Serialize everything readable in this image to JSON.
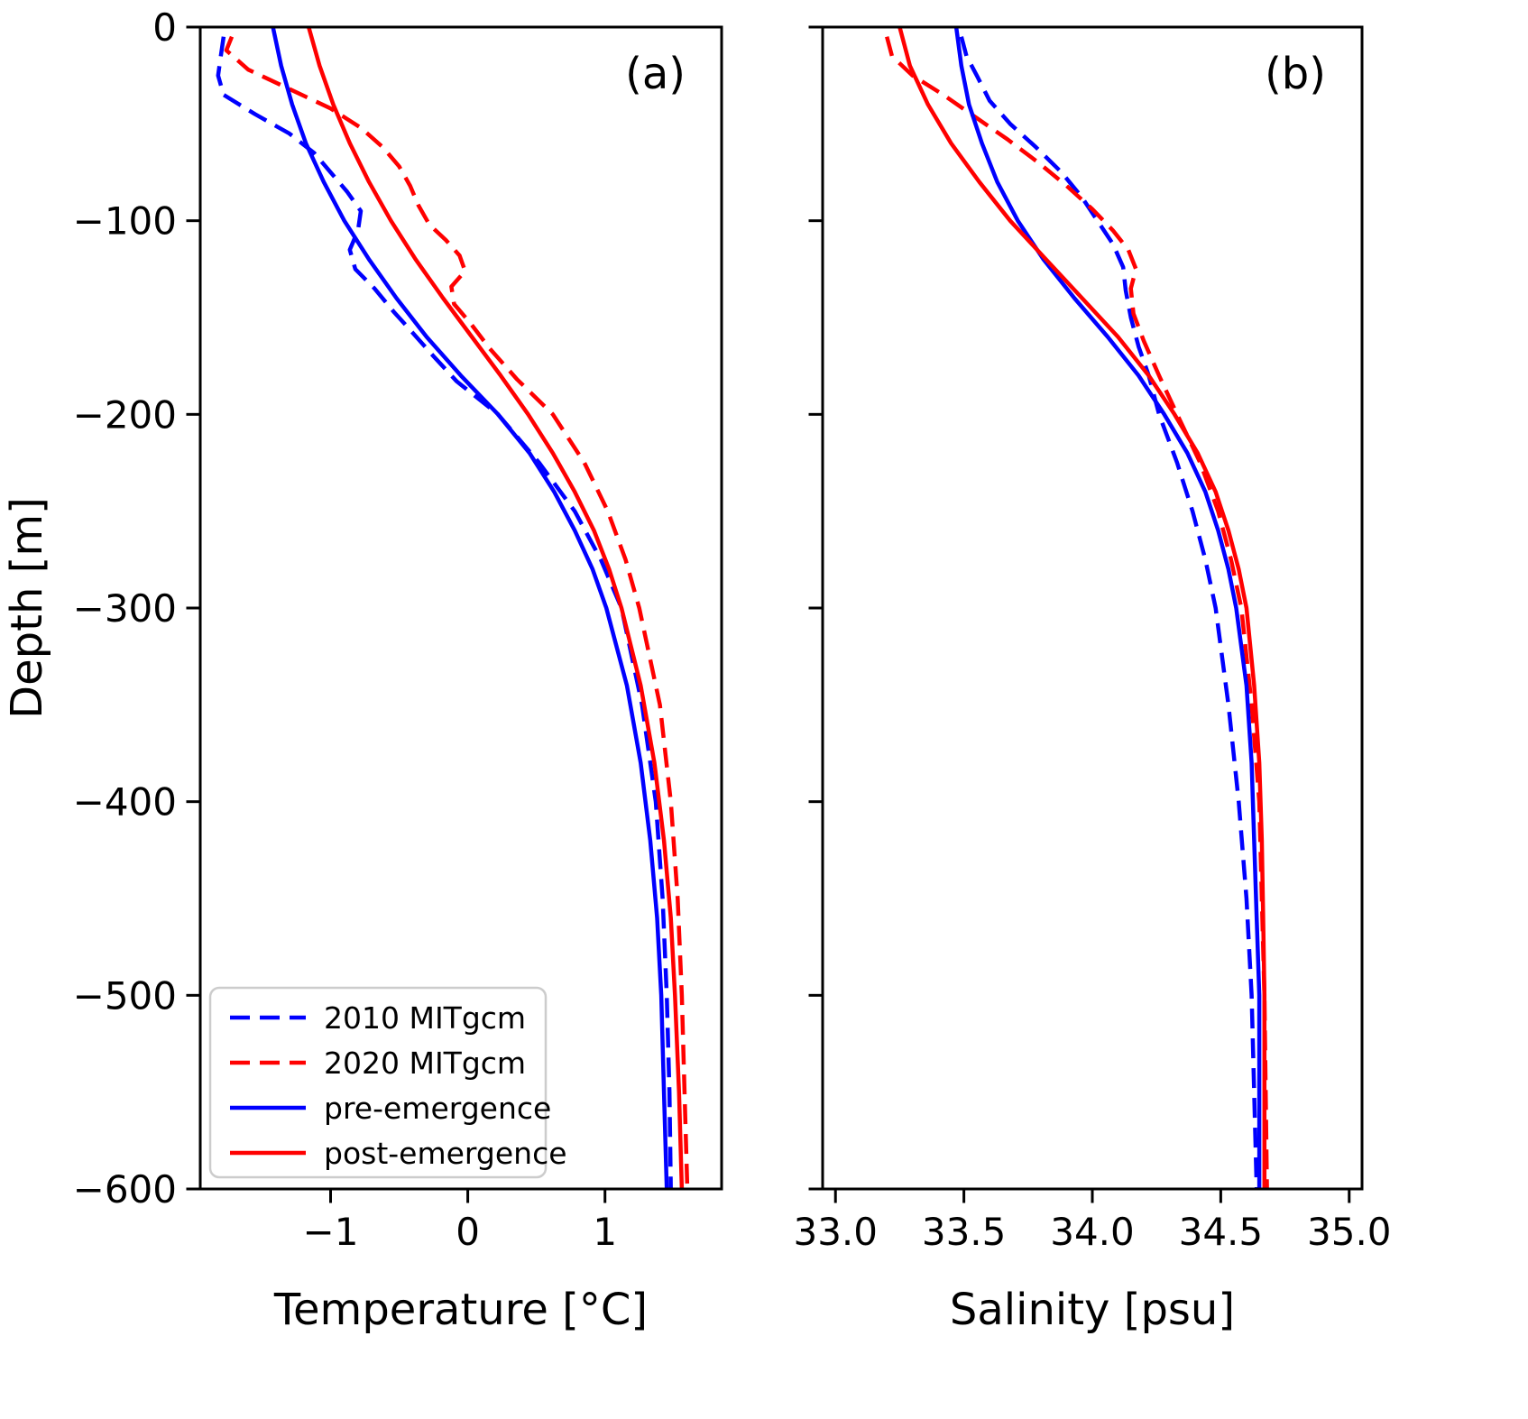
{
  "figure": {
    "background": "#ffffff",
    "ylabel": "Depth [m]"
  },
  "colors": {
    "blue": "#0000ff",
    "red": "#ff0000",
    "axis": "#000000",
    "legend_border": "#cccccc",
    "legend_background": "#ffffff"
  },
  "legend": {
    "position": "lower left of panel a",
    "entries": [
      {
        "label": "2010 MITgcm",
        "color": "#0000ff",
        "dashed": true
      },
      {
        "label": "2020 MITgcm",
        "color": "#ff0000",
        "dashed": true
      },
      {
        "label": "pre-emergence",
        "color": "#0000ff",
        "dashed": false
      },
      {
        "label": "post-emergence",
        "color": "#ff0000",
        "dashed": false
      }
    ]
  },
  "chart_data": [
    {
      "id": "a",
      "type": "line",
      "panel_label": "(a)",
      "xlabel": "Temperature [°C]",
      "ylabel": "Depth [m]",
      "xlim": [
        -1.95,
        1.85
      ],
      "ylim": [
        -600,
        0
      ],
      "grid": false,
      "xticks": [
        {
          "value": -1,
          "label": "−1"
        },
        {
          "value": 0,
          "label": "0"
        },
        {
          "value": 1,
          "label": "1"
        }
      ],
      "yticks": [
        {
          "value": 0,
          "label": "0"
        },
        {
          "value": -100,
          "label": "−100"
        },
        {
          "value": -200,
          "label": "−200"
        },
        {
          "value": -300,
          "label": "−300"
        },
        {
          "value": -400,
          "label": "−400"
        },
        {
          "value": -500,
          "label": "−500"
        },
        {
          "value": -600,
          "label": "−600"
        }
      ],
      "show_ytick_labels": true,
      "series": [
        {
          "name": "2010 MITgcm",
          "color": "#0000ff",
          "dashed": true,
          "points": [
            [
              -1.78,
              -5
            ],
            [
              -1.8,
              -15
            ],
            [
              -1.82,
              -25
            ],
            [
              -1.78,
              -35
            ],
            [
              -1.55,
              -45
            ],
            [
              -1.3,
              -55
            ],
            [
              -1.12,
              -65
            ],
            [
              -1.0,
              -75
            ],
            [
              -0.88,
              -85
            ],
            [
              -0.78,
              -95
            ],
            [
              -0.8,
              -105
            ],
            [
              -0.86,
              -115
            ],
            [
              -0.82,
              -125
            ],
            [
              -0.68,
              -135
            ],
            [
              -0.54,
              -147
            ],
            [
              -0.4,
              -158
            ],
            [
              -0.25,
              -170
            ],
            [
              -0.08,
              -183
            ],
            [
              0.22,
              -200
            ],
            [
              0.52,
              -225
            ],
            [
              0.78,
              -250
            ],
            [
              0.97,
              -275
            ],
            [
              1.12,
              -300
            ],
            [
              1.27,
              -350
            ],
            [
              1.37,
              -400
            ],
            [
              1.42,
              -450
            ],
            [
              1.45,
              -500
            ],
            [
              1.47,
              -550
            ],
            [
              1.48,
              -600
            ]
          ]
        },
        {
          "name": "2020 MITgcm",
          "color": "#ff0000",
          "dashed": true,
          "points": [
            [
              -1.72,
              -5
            ],
            [
              -1.76,
              -12
            ],
            [
              -1.6,
              -22
            ],
            [
              -1.3,
              -32
            ],
            [
              -1.0,
              -42
            ],
            [
              -0.78,
              -52
            ],
            [
              -0.62,
              -62
            ],
            [
              -0.5,
              -72
            ],
            [
              -0.42,
              -82
            ],
            [
              -0.36,
              -92
            ],
            [
              -0.28,
              -102
            ],
            [
              -0.16,
              -110
            ],
            [
              -0.06,
              -118
            ],
            [
              -0.02,
              -126
            ],
            [
              -0.12,
              -134
            ],
            [
              -0.1,
              -143
            ],
            [
              0.02,
              -153
            ],
            [
              0.16,
              -166
            ],
            [
              0.36,
              -182
            ],
            [
              0.62,
              -200
            ],
            [
              0.85,
              -225
            ],
            [
              1.02,
              -250
            ],
            [
              1.15,
              -275
            ],
            [
              1.25,
              -300
            ],
            [
              1.4,
              -350
            ],
            [
              1.48,
              -400
            ],
            [
              1.53,
              -450
            ],
            [
              1.56,
              -500
            ],
            [
              1.58,
              -550
            ],
            [
              1.6,
              -600
            ]
          ]
        },
        {
          "name": "pre-emergence",
          "color": "#0000ff",
          "dashed": false,
          "points": [
            [
              -1.42,
              0
            ],
            [
              -1.36,
              -20
            ],
            [
              -1.28,
              -40
            ],
            [
              -1.18,
              -60
            ],
            [
              -1.05,
              -80
            ],
            [
              -0.9,
              -100
            ],
            [
              -0.72,
              -120
            ],
            [
              -0.52,
              -140
            ],
            [
              -0.3,
              -160
            ],
            [
              -0.05,
              -180
            ],
            [
              0.22,
              -200
            ],
            [
              0.45,
              -220
            ],
            [
              0.63,
              -240
            ],
            [
              0.78,
              -260
            ],
            [
              0.91,
              -280
            ],
            [
              1.01,
              -300
            ],
            [
              1.16,
              -340
            ],
            [
              1.26,
              -380
            ],
            [
              1.33,
              -420
            ],
            [
              1.38,
              -460
            ],
            [
              1.41,
              -500
            ],
            [
              1.43,
              -550
            ],
            [
              1.45,
              -600
            ]
          ]
        },
        {
          "name": "post-emergence",
          "color": "#ff0000",
          "dashed": false,
          "points": [
            [
              -1.16,
              0
            ],
            [
              -1.08,
              -20
            ],
            [
              -0.98,
              -40
            ],
            [
              -0.86,
              -60
            ],
            [
              -0.72,
              -80
            ],
            [
              -0.56,
              -100
            ],
            [
              -0.38,
              -120
            ],
            [
              -0.18,
              -140
            ],
            [
              0.03,
              -160
            ],
            [
              0.24,
              -180
            ],
            [
              0.44,
              -200
            ],
            [
              0.62,
              -220
            ],
            [
              0.78,
              -240
            ],
            [
              0.92,
              -260
            ],
            [
              1.03,
              -280
            ],
            [
              1.12,
              -300
            ],
            [
              1.26,
              -340
            ],
            [
              1.36,
              -380
            ],
            [
              1.43,
              -420
            ],
            [
              1.48,
              -460
            ],
            [
              1.51,
              -500
            ],
            [
              1.54,
              -550
            ],
            [
              1.56,
              -600
            ]
          ]
        }
      ]
    },
    {
      "id": "b",
      "type": "line",
      "panel_label": "(b)",
      "xlabel": "Salinity [psu]",
      "ylabel": "Depth [m]",
      "xlim": [
        32.95,
        35.05
      ],
      "ylim": [
        -600,
        0
      ],
      "grid": false,
      "xticks": [
        {
          "value": 33.0,
          "label": "33.0"
        },
        {
          "value": 33.5,
          "label": "33.5"
        },
        {
          "value": 34.0,
          "label": "34.0"
        },
        {
          "value": 34.5,
          "label": "34.5"
        },
        {
          "value": 35.0,
          "label": "35.0"
        }
      ],
      "yticks": [
        {
          "value": 0,
          "label": "0"
        },
        {
          "value": -100,
          "label": "−100"
        },
        {
          "value": -200,
          "label": "−200"
        },
        {
          "value": -300,
          "label": "−300"
        },
        {
          "value": -400,
          "label": "−400"
        },
        {
          "value": -500,
          "label": "−500"
        },
        {
          "value": -600,
          "label": "−600"
        }
      ],
      "show_ytick_labels": false,
      "series": [
        {
          "name": "2010 MITgcm",
          "color": "#0000ff",
          "dashed": true,
          "points": [
            [
              33.49,
              -5
            ],
            [
              33.51,
              -15
            ],
            [
              33.55,
              -25
            ],
            [
              33.6,
              -38
            ],
            [
              33.68,
              -50
            ],
            [
              33.78,
              -62
            ],
            [
              33.88,
              -75
            ],
            [
              33.96,
              -88
            ],
            [
              34.02,
              -100
            ],
            [
              34.08,
              -112
            ],
            [
              34.12,
              -124
            ],
            [
              34.13,
              -136
            ],
            [
              34.15,
              -150
            ],
            [
              34.18,
              -165
            ],
            [
              34.22,
              -180
            ],
            [
              34.26,
              -200
            ],
            [
              34.33,
              -225
            ],
            [
              34.39,
              -250
            ],
            [
              34.44,
              -275
            ],
            [
              34.48,
              -300
            ],
            [
              34.53,
              -350
            ],
            [
              34.57,
              -400
            ],
            [
              34.6,
              -450
            ],
            [
              34.62,
              -500
            ],
            [
              34.63,
              -550
            ],
            [
              34.64,
              -600
            ]
          ]
        },
        {
          "name": "2020 MITgcm",
          "color": "#ff0000",
          "dashed": true,
          "points": [
            [
              33.2,
              -5
            ],
            [
              33.22,
              -15
            ],
            [
              33.3,
              -25
            ],
            [
              33.42,
              -35
            ],
            [
              33.55,
              -47
            ],
            [
              33.67,
              -58
            ],
            [
              33.79,
              -70
            ],
            [
              33.9,
              -82
            ],
            [
              34.0,
              -94
            ],
            [
              34.08,
              -105
            ],
            [
              34.14,
              -115
            ],
            [
              34.17,
              -125
            ],
            [
              34.15,
              -135
            ],
            [
              34.16,
              -148
            ],
            [
              34.2,
              -162
            ],
            [
              34.26,
              -180
            ],
            [
              34.33,
              -200
            ],
            [
              34.42,
              -225
            ],
            [
              34.49,
              -250
            ],
            [
              34.54,
              -275
            ],
            [
              34.58,
              -300
            ],
            [
              34.62,
              -350
            ],
            [
              34.65,
              -400
            ],
            [
              34.66,
              -450
            ],
            [
              34.67,
              -500
            ],
            [
              34.675,
              -550
            ],
            [
              34.68,
              -600
            ]
          ]
        },
        {
          "name": "pre-emergence",
          "color": "#0000ff",
          "dashed": false,
          "points": [
            [
              33.47,
              0
            ],
            [
              33.49,
              -20
            ],
            [
              33.52,
              -40
            ],
            [
              33.57,
              -60
            ],
            [
              33.63,
              -80
            ],
            [
              33.71,
              -100
            ],
            [
              33.81,
              -120
            ],
            [
              33.93,
              -140
            ],
            [
              34.06,
              -160
            ],
            [
              34.18,
              -180
            ],
            [
              34.28,
              -200
            ],
            [
              34.37,
              -220
            ],
            [
              34.44,
              -240
            ],
            [
              34.49,
              -260
            ],
            [
              34.53,
              -280
            ],
            [
              34.56,
              -300
            ],
            [
              34.6,
              -340
            ],
            [
              34.62,
              -380
            ],
            [
              34.63,
              -420
            ],
            [
              34.64,
              -460
            ],
            [
              34.65,
              -500
            ],
            [
              34.65,
              -550
            ],
            [
              34.65,
              -600
            ]
          ]
        },
        {
          "name": "post-emergence",
          "color": "#ff0000",
          "dashed": false,
          "points": [
            [
              33.25,
              0
            ],
            [
              33.29,
              -20
            ],
            [
              33.36,
              -40
            ],
            [
              33.45,
              -60
            ],
            [
              33.56,
              -80
            ],
            [
              33.68,
              -100
            ],
            [
              33.82,
              -120
            ],
            [
              33.96,
              -140
            ],
            [
              34.1,
              -160
            ],
            [
              34.22,
              -180
            ],
            [
              34.32,
              -200
            ],
            [
              34.41,
              -220
            ],
            [
              34.48,
              -240
            ],
            [
              34.53,
              -260
            ],
            [
              34.57,
              -280
            ],
            [
              34.6,
              -300
            ],
            [
              34.63,
              -340
            ],
            [
              34.65,
              -380
            ],
            [
              34.66,
              -420
            ],
            [
              34.665,
              -460
            ],
            [
              34.67,
              -500
            ],
            [
              34.67,
              -550
            ],
            [
              34.67,
              -600
            ]
          ]
        }
      ]
    }
  ]
}
